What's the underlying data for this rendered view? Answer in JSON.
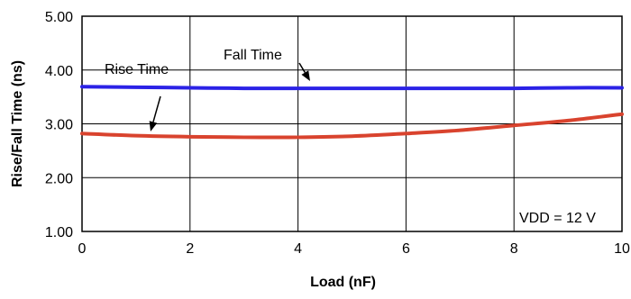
{
  "chart_data": {
    "type": "line",
    "title": "",
    "xlabel": "Load  (nF)",
    "ylabel": "Rise/Fall Time (ns)",
    "xlim": [
      0,
      10
    ],
    "ylim": [
      1.0,
      5.0
    ],
    "x_ticks": [
      0,
      2,
      4,
      6,
      8,
      10
    ],
    "x_tick_labels": [
      "0",
      "2",
      "4",
      "6",
      "8",
      "10"
    ],
    "y_ticks": [
      1.0,
      2.0,
      3.0,
      4.0,
      5.0
    ],
    "y_tick_labels": [
      "1.00",
      "2.00",
      "3.00",
      "4.00",
      "5.00"
    ],
    "grid": true,
    "legend": "none",
    "series": [
      {
        "name": "Fall Time",
        "color": "#2b22e6",
        "x": [
          0,
          1,
          2,
          3,
          4,
          5,
          6,
          7,
          8,
          9,
          10
        ],
        "y": [
          3.69,
          3.68,
          3.67,
          3.66,
          3.66,
          3.66,
          3.66,
          3.66,
          3.66,
          3.67,
          3.67
        ]
      },
      {
        "name": "Rise Time",
        "color": "#d9432e",
        "x": [
          0,
          1,
          2,
          3,
          4,
          5,
          6,
          7,
          8,
          9,
          10
        ],
        "y": [
          2.82,
          2.78,
          2.76,
          2.75,
          2.75,
          2.77,
          2.82,
          2.88,
          2.97,
          3.06,
          3.18
        ]
      }
    ],
    "annotations": {
      "fall_label": "Fall Time",
      "rise_label": "Rise Time",
      "condition": "VDD = 12 V"
    }
  }
}
